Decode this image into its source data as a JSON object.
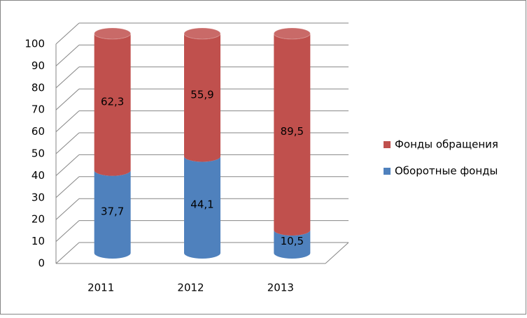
{
  "chart_data": {
    "type": "bar3d_cylinder_stacked",
    "categories": [
      "2011",
      "2012",
      "2013"
    ],
    "series": [
      {
        "name": "Оборотные фонды",
        "color": "#4f81bd",
        "values": [
          37.7,
          44.1,
          10.5
        ],
        "value_labels": [
          "37,7",
          "44,1",
          "10,5"
        ]
      },
      {
        "name": "Фонды обращения",
        "color": "#c0504d",
        "values": [
          62.3,
          55.9,
          89.5
        ],
        "value_labels": [
          "62,3",
          "55,9",
          "89,5"
        ]
      }
    ],
    "ylim": [
      0,
      100
    ],
    "yticks": [
      0,
      10,
      20,
      30,
      40,
      50,
      60,
      70,
      80,
      90,
      100
    ],
    "grid": true,
    "legend": "right"
  }
}
